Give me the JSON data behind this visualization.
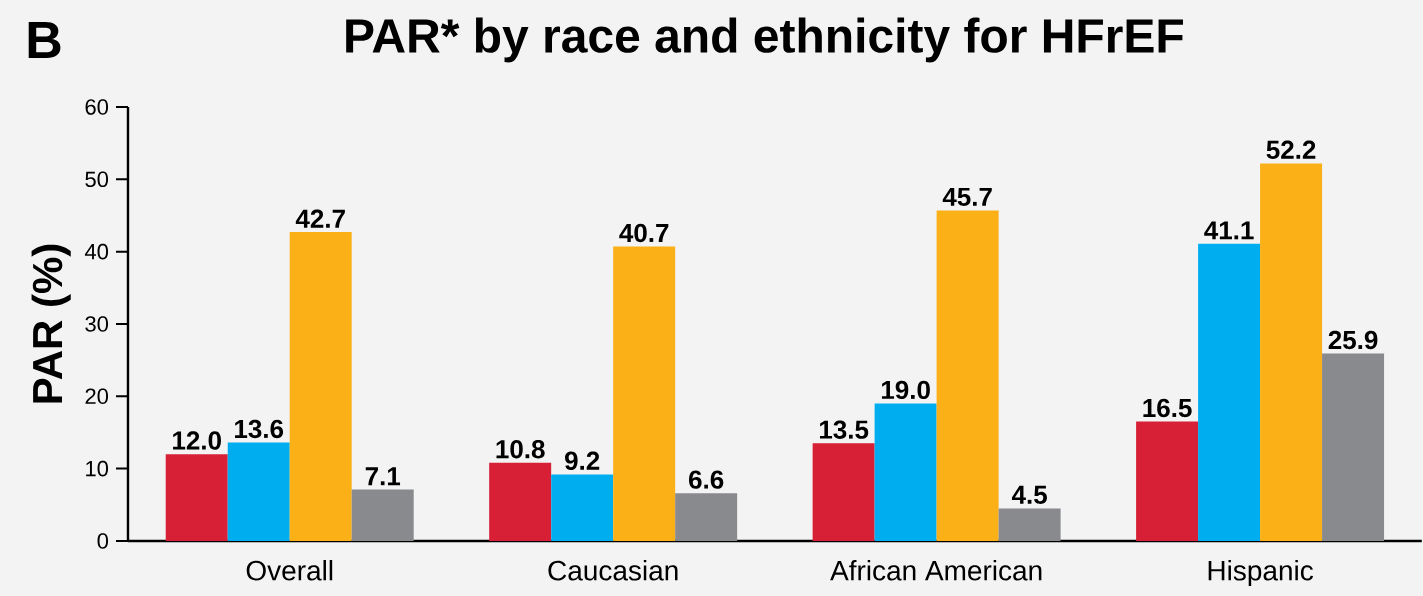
{
  "chart_data": {
    "type": "bar",
    "title": "PAR* by race and ethnicity for HFrEF",
    "ylabel": "PAR (%)",
    "annotations": [
      "B"
    ],
    "categories": [
      "Overall",
      "Caucasian",
      "African American",
      "Hispanic"
    ],
    "series": [
      {
        "color": "#d71f35",
        "values": [
          12.0,
          10.8,
          13.5,
          16.5
        ],
        "value_labels": [
          "12.0",
          "10.8",
          "13.5",
          "16.5"
        ]
      },
      {
        "color": "#00aeef",
        "values": [
          13.6,
          9.2,
          19.0,
          41.1
        ],
        "value_labels": [
          "13.6",
          "9.2",
          "19.0",
          "41.1"
        ]
      },
      {
        "color": "#fbb017",
        "values": [
          42.7,
          40.7,
          45.7,
          52.2
        ],
        "value_labels": [
          "42.7",
          "40.7",
          "45.7",
          "52.2"
        ]
      },
      {
        "color": "#898a8d",
        "values": [
          7.1,
          6.6,
          4.5,
          25.9
        ],
        "value_labels": [
          "7.1",
          "6.6",
          "4.5",
          "25.9"
        ]
      }
    ],
    "ylim": [
      0,
      60
    ],
    "yticks": [
      0,
      10,
      20,
      30,
      40,
      50,
      60
    ],
    "grid": false
  }
}
